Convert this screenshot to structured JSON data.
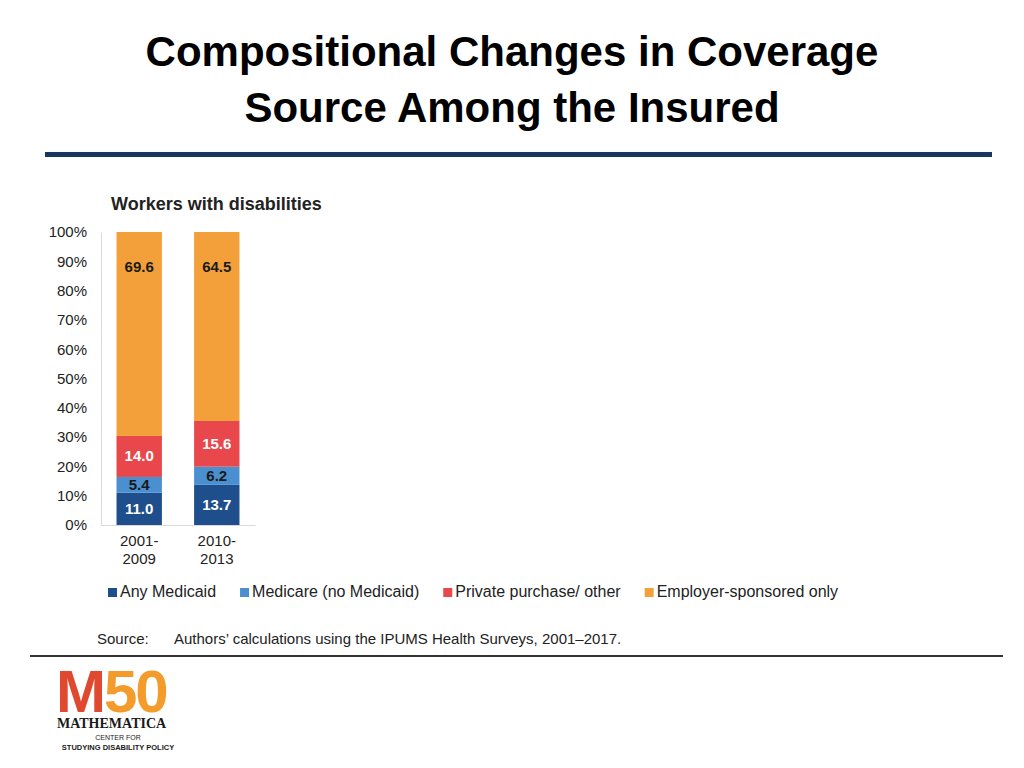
{
  "chart_data": {
    "type": "bar",
    "stacked": true,
    "data_labels": true,
    "grid": false,
    "legend": "bottom",
    "title": "Compositional Changes in Coverage Source Among the Insured",
    "subtitle": "Workers with disabilities",
    "categories": [
      "2001-2009",
      "2010-2013"
    ],
    "series": [
      {
        "name": "Any Medicaid",
        "color": "#1f4e8c",
        "values": [
          11.0,
          13.7
        ],
        "value_labels": [
          "11.0",
          "13.7"
        ]
      },
      {
        "name": "Medicare (no Medicaid)",
        "color": "#4a90d0",
        "values": [
          5.4,
          6.2
        ],
        "value_labels": [
          "5.4",
          "6.2"
        ]
      },
      {
        "name": "Private purchase/ other",
        "color": "#e8474c",
        "values": [
          14.0,
          15.6
        ],
        "value_labels": [
          "14.0",
          "15.6"
        ]
      },
      {
        "name": "Employer-sponsored only",
        "color": "#f4a03a",
        "values": [
          69.6,
          64.5
        ],
        "value_labels": [
          "69.6",
          "64.5"
        ]
      }
    ],
    "ylim": [
      0,
      100
    ],
    "yticks": [
      {
        "value": 0,
        "label": "0%"
      },
      {
        "value": 10,
        "label": "10%"
      },
      {
        "value": 20,
        "label": "20%"
      },
      {
        "value": 30,
        "label": "30%"
      },
      {
        "value": 40,
        "label": "40%"
      },
      {
        "value": 50,
        "label": "50%"
      },
      {
        "value": 60,
        "label": "60%"
      },
      {
        "value": 70,
        "label": "70%"
      },
      {
        "value": 80,
        "label": "80%"
      },
      {
        "value": 90,
        "label": "90%"
      },
      {
        "value": 100,
        "label": "100%"
      }
    ],
    "source_label": "Source:",
    "source": "Authors’ calculations using the IPUMS Health Surveys, 2001–2017.",
    "logo": [
      "M",
      "50",
      "MATHEMATICA",
      "CENTER FOR",
      "STUDYING DISABILITY POLICY"
    ]
  }
}
